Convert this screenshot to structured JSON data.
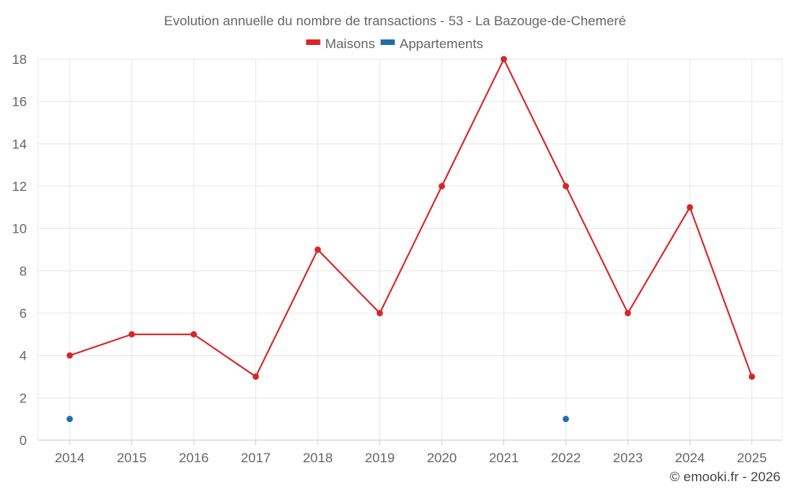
{
  "chart_data": {
    "type": "line",
    "title": "Evolution annuelle du nombre de transactions - 53 - La Bazouge-de-Chemeré",
    "categories": [
      "2014",
      "2015",
      "2016",
      "2017",
      "2018",
      "2019",
      "2020",
      "2021",
      "2022",
      "2023",
      "2024",
      "2025"
    ],
    "series": [
      {
        "name": "Maisons",
        "color": "#d62728",
        "values": [
          4,
          5,
          5,
          3,
          9,
          6,
          12,
          18,
          12,
          6,
          11,
          3
        ]
      },
      {
        "name": "Appartements",
        "color": "#1f6fa8",
        "values": [
          1,
          null,
          null,
          null,
          null,
          null,
          null,
          null,
          1,
          null,
          null,
          null
        ]
      }
    ],
    "ylim": [
      0,
      18
    ],
    "yticks": [
      0,
      2,
      4,
      6,
      8,
      10,
      12,
      14,
      16,
      18
    ],
    "grid": true,
    "legend": "top-center"
  },
  "credit": "© emooki.fr - 2026"
}
